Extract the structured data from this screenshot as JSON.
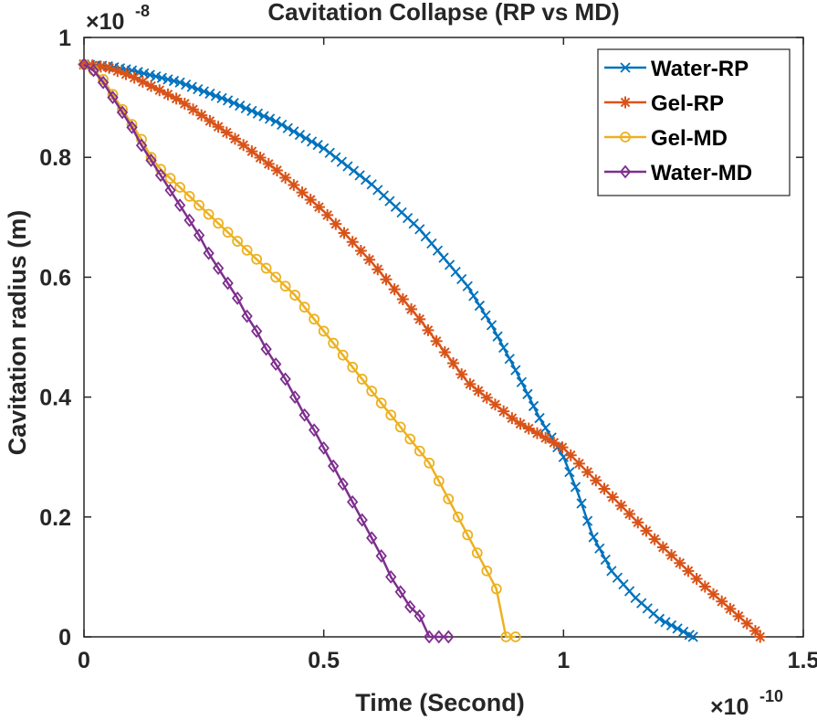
{
  "chart_data": {
    "type": "line",
    "title": "Cavitation Collapse (RP vs MD)",
    "xlabel": "Time (Second)",
    "ylabel": "Cavitation radius (m)",
    "x_exponent": {
      "base": "×10",
      "power": "-10"
    },
    "y_exponent": {
      "base": "×10",
      "power": "-8"
    },
    "xlim": [
      0,
      1.5
    ],
    "ylim": [
      0,
      1
    ],
    "xticks": [
      0,
      0.5,
      1,
      1.5
    ],
    "xtick_labels": [
      "0",
      "0.5",
      "1",
      "1.5"
    ],
    "yticks": [
      0,
      0.2,
      0.4,
      0.6,
      0.8,
      1
    ],
    "ytick_labels": [
      "0",
      "0.2",
      "0.4",
      "0.6",
      "0.8",
      "1"
    ],
    "grid": false,
    "legend_position": "top-right",
    "series": [
      {
        "name": "Water-RP",
        "color": "#0072BD",
        "marker": "x",
        "curve": [
          [
            0,
            0.955
          ],
          [
            0.05,
            0.952
          ],
          [
            0.1,
            0.945
          ],
          [
            0.2,
            0.925
          ],
          [
            0.3,
            0.895
          ],
          [
            0.4,
            0.86
          ],
          [
            0.5,
            0.815
          ],
          [
            0.6,
            0.755
          ],
          [
            0.7,
            0.68
          ],
          [
            0.8,
            0.585
          ],
          [
            0.85,
            0.52
          ],
          [
            0.9,
            0.445
          ],
          [
            0.95,
            0.365
          ],
          [
            1.0,
            0.3
          ],
          [
            1.03,
            0.24
          ],
          [
            1.06,
            0.17
          ],
          [
            1.1,
            0.11
          ],
          [
            1.15,
            0.065
          ],
          [
            1.2,
            0.03
          ],
          [
            1.27,
            0.0
          ]
        ],
        "marker_step": 0.0125
      },
      {
        "name": "Gel-RP",
        "color": "#D95319",
        "marker": "asterisk",
        "curve": [
          [
            0,
            0.955
          ],
          [
            0.05,
            0.95
          ],
          [
            0.1,
            0.935
          ],
          [
            0.2,
            0.895
          ],
          [
            0.3,
            0.84
          ],
          [
            0.4,
            0.78
          ],
          [
            0.5,
            0.71
          ],
          [
            0.6,
            0.625
          ],
          [
            0.7,
            0.53
          ],
          [
            0.8,
            0.425
          ],
          [
            0.9,
            0.36
          ],
          [
            1.0,
            0.315
          ],
          [
            1.1,
            0.235
          ],
          [
            1.2,
            0.155
          ],
          [
            1.3,
            0.08
          ],
          [
            1.35,
            0.045
          ],
          [
            1.4,
            0.01
          ],
          [
            1.41,
            0.0
          ]
        ],
        "marker_step": 0.0175
      },
      {
        "name": "Gel-MD",
        "color": "#EDB120",
        "marker": "circle",
        "x": [
          0,
          0.02,
          0.04,
          0.06,
          0.08,
          0.1,
          0.12,
          0.14,
          0.16,
          0.18,
          0.2,
          0.22,
          0.24,
          0.26,
          0.28,
          0.3,
          0.32,
          0.34,
          0.36,
          0.38,
          0.4,
          0.42,
          0.44,
          0.46,
          0.48,
          0.5,
          0.52,
          0.54,
          0.56,
          0.58,
          0.6,
          0.62,
          0.64,
          0.66,
          0.68,
          0.7,
          0.72,
          0.74,
          0.76,
          0.78,
          0.8,
          0.82,
          0.84,
          0.86,
          0.88,
          0.9
        ],
        "y": [
          0.955,
          0.945,
          0.93,
          0.905,
          0.88,
          0.855,
          0.83,
          0.8,
          0.78,
          0.765,
          0.75,
          0.735,
          0.72,
          0.705,
          0.69,
          0.675,
          0.66,
          0.645,
          0.63,
          0.615,
          0.6,
          0.585,
          0.57,
          0.55,
          0.53,
          0.51,
          0.49,
          0.47,
          0.45,
          0.43,
          0.41,
          0.39,
          0.37,
          0.35,
          0.33,
          0.31,
          0.29,
          0.26,
          0.23,
          0.2,
          0.17,
          0.14,
          0.11,
          0.08,
          0.0,
          0.0
        ]
      },
      {
        "name": "Water-MD",
        "color": "#7E2F8E",
        "marker": "diamond",
        "x": [
          0,
          0.02,
          0.04,
          0.06,
          0.08,
          0.1,
          0.12,
          0.14,
          0.16,
          0.18,
          0.2,
          0.22,
          0.24,
          0.26,
          0.28,
          0.3,
          0.32,
          0.34,
          0.36,
          0.38,
          0.4,
          0.42,
          0.44,
          0.46,
          0.48,
          0.5,
          0.52,
          0.54,
          0.56,
          0.58,
          0.6,
          0.62,
          0.64,
          0.66,
          0.68,
          0.7,
          0.72,
          0.74,
          0.76
        ],
        "y": [
          0.955,
          0.945,
          0.925,
          0.9,
          0.875,
          0.85,
          0.82,
          0.795,
          0.77,
          0.745,
          0.72,
          0.695,
          0.67,
          0.64,
          0.615,
          0.59,
          0.565,
          0.535,
          0.51,
          0.48,
          0.455,
          0.43,
          0.4,
          0.37,
          0.345,
          0.315,
          0.285,
          0.255,
          0.225,
          0.195,
          0.165,
          0.135,
          0.1,
          0.075,
          0.05,
          0.035,
          0.0,
          0.0,
          0.0
        ]
      }
    ]
  }
}
